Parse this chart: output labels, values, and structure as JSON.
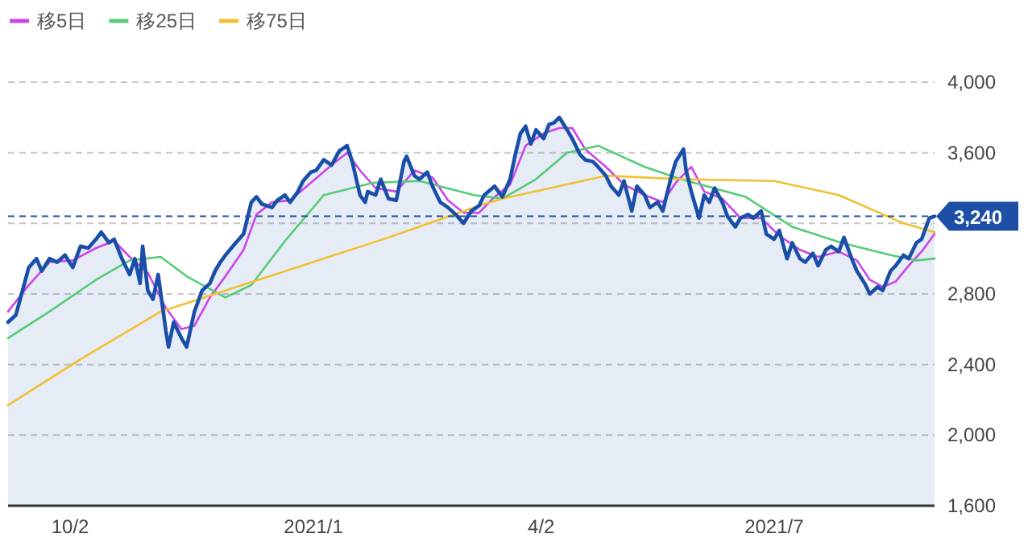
{
  "chart_data": {
    "type": "line",
    "grid": "y",
    "legend": "top left",
    "xlim": [
      "2020-09-08",
      "2021-09-01"
    ],
    "ylim": [
      1600,
      4000
    ],
    "xticks": [
      {
        "value": "2020-10-02",
        "label": "10/2"
      },
      {
        "value": "2021-01-04",
        "label": "2021/1"
      },
      {
        "value": "2021-04-02",
        "label": "4/2"
      },
      {
        "value": "2021-07-01",
        "label": "2021/7"
      }
    ],
    "yticks": [
      {
        "value": 1600,
        "label": "1,600"
      },
      {
        "value": 2000,
        "label": "2,000"
      },
      {
        "value": 2400,
        "label": "2,400"
      },
      {
        "value": 2800,
        "label": "2,800"
      },
      {
        "value": 3200,
        "label": null
      },
      {
        "value": 3600,
        "label": "3,600"
      },
      {
        "value": 4000,
        "label": "4,000"
      }
    ],
    "ref_lines": [
      {
        "axis": "y",
        "value": 3240,
        "label": "3,240",
        "color": "#1d4fa6",
        "line_style": "dashed"
      }
    ],
    "series": [
      {
        "type": "area",
        "color": "#1a4fa8",
        "x": [
          "2020-09-08",
          "2020-09-11",
          "2020-09-16",
          "2020-09-19",
          "2020-09-21",
          "2020-09-24",
          "2020-09-27",
          "2020-09-30",
          "2020-10-03",
          "2020-10-06",
          "2020-10-09",
          "2020-10-12",
          "2020-10-14",
          "2020-10-17",
          "2020-10-19",
          "2020-10-22",
          "2020-10-25",
          "2020-10-27",
          "2020-10-29",
          "2020-10-30",
          "2020-11-01",
          "2020-11-03",
          "2020-11-05",
          "2020-11-08",
          "2020-11-09",
          "2020-11-11",
          "2020-11-14",
          "2020-11-16",
          "2020-11-19",
          "2020-11-22",
          "2020-11-25",
          "2020-11-27",
          "2020-11-29",
          "2020-12-01",
          "2020-12-05",
          "2020-12-08",
          "2020-12-11",
          "2020-12-13",
          "2020-12-15",
          "2020-12-19",
          "2020-12-21",
          "2020-12-24",
          "2020-12-26",
          "2020-12-29",
          "2020-12-31",
          "2021-01-03",
          "2021-01-05",
          "2021-01-08",
          "2021-01-11",
          "2021-01-14",
          "2021-01-17",
          "2021-01-19",
          "2021-01-22",
          "2021-01-24",
          "2021-01-25",
          "2021-01-28",
          "2021-01-30",
          "2021-02-02",
          "2021-02-05",
          "2021-02-08",
          "2021-02-09",
          "2021-02-12",
          "2021-02-14",
          "2021-02-17",
          "2021-02-19",
          "2021-02-22",
          "2021-02-25",
          "2021-02-28",
          "2021-03-03",
          "2021-03-06",
          "2021-03-09",
          "2021-03-11",
          "2021-03-15",
          "2021-03-18",
          "2021-03-21",
          "2021-03-23",
          "2021-03-25",
          "2021-03-27",
          "2021-03-29",
          "2021-03-31",
          "2021-04-03",
          "2021-04-05",
          "2021-04-07",
          "2021-04-09",
          "2021-04-12",
          "2021-04-14",
          "2021-04-17",
          "2021-04-19",
          "2021-04-22",
          "2021-04-24",
          "2021-04-27",
          "2021-04-29",
          "2021-05-02",
          "2021-05-04",
          "2021-05-07",
          "2021-05-09",
          "2021-05-12",
          "2021-05-14",
          "2021-05-17",
          "2021-05-19",
          "2021-05-22",
          "2021-05-24",
          "2021-05-27",
          "2021-05-28",
          "2021-05-30",
          "2021-06-02",
          "2021-06-04",
          "2021-06-06",
          "2021-06-08",
          "2021-06-11",
          "2021-06-13",
          "2021-06-16",
          "2021-06-18",
          "2021-06-21",
          "2021-06-23",
          "2021-06-26",
          "2021-06-28",
          "2021-07-01",
          "2021-07-03",
          "2021-07-06",
          "2021-07-08",
          "2021-07-11",
          "2021-07-13",
          "2021-07-16",
          "2021-07-18",
          "2021-07-21",
          "2021-07-23",
          "2021-07-26",
          "2021-07-28",
          "2021-07-31",
          "2021-08-02",
          "2021-08-05",
          "2021-08-07",
          "2021-08-10",
          "2021-08-12",
          "2021-08-15",
          "2021-08-17",
          "2021-08-20",
          "2021-08-22",
          "2021-08-25",
          "2021-08-27",
          "2021-08-30",
          "2021-09-01"
        ],
        "values": [
          2640,
          2680,
          2950,
          3000,
          2930,
          3000,
          2980,
          3020,
          2950,
          3070,
          3060,
          3110,
          3150,
          3090,
          3110,
          3000,
          2910,
          3000,
          2860,
          3070,
          2820,
          2770,
          2910,
          2590,
          2500,
          2640,
          2550,
          2500,
          2700,
          2820,
          2860,
          2930,
          2980,
          3020,
          3090,
          3140,
          3320,
          3350,
          3310,
          3290,
          3330,
          3360,
          3320,
          3380,
          3440,
          3490,
          3500,
          3560,
          3530,
          3610,
          3640,
          3550,
          3360,
          3320,
          3380,
          3360,
          3450,
          3340,
          3330,
          3550,
          3580,
          3470,
          3450,
          3490,
          3410,
          3320,
          3290,
          3250,
          3200,
          3270,
          3300,
          3360,
          3410,
          3350,
          3450,
          3590,
          3710,
          3750,
          3650,
          3730,
          3680,
          3760,
          3770,
          3800,
          3730,
          3680,
          3590,
          3560,
          3550,
          3520,
          3470,
          3410,
          3360,
          3440,
          3270,
          3410,
          3360,
          3290,
          3320,
          3270,
          3450,
          3550,
          3620,
          3500,
          3380,
          3230,
          3360,
          3320,
          3400,
          3320,
          3240,
          3180,
          3230,
          3250,
          3230,
          3270,
          3140,
          3110,
          3160,
          3000,
          3090,
          3000,
          2980,
          3030,
          2960,
          3050,
          3070,
          3040,
          3120,
          3000,
          2930,
          2860,
          2800,
          2840,
          2820,
          2930,
          2960,
          3020,
          3000,
          3090,
          3110,
          3230,
          3240
        ]
      },
      {
        "name": "移5日",
        "color": "#cc44ee",
        "x": [
          "2020-09-08",
          "2020-09-16",
          "2020-09-24",
          "2020-10-03",
          "2020-10-12",
          "2020-10-19",
          "2020-10-25",
          "2020-11-01",
          "2020-11-08",
          "2020-11-14",
          "2020-11-19",
          "2020-11-25",
          "2020-12-01",
          "2020-12-08",
          "2020-12-13",
          "2020-12-19",
          "2020-12-26",
          "2021-01-03",
          "2021-01-11",
          "2021-01-17",
          "2021-01-22",
          "2021-01-28",
          "2021-02-05",
          "2021-02-12",
          "2021-02-19",
          "2021-02-25",
          "2021-03-03",
          "2021-03-09",
          "2021-03-15",
          "2021-03-21",
          "2021-03-27",
          "2021-04-03",
          "2021-04-09",
          "2021-04-14",
          "2021-04-19",
          "2021-04-27",
          "2021-05-04",
          "2021-05-12",
          "2021-05-19",
          "2021-05-24",
          "2021-05-30",
          "2021-06-04",
          "2021-06-11",
          "2021-06-18",
          "2021-06-26",
          "2021-07-03",
          "2021-07-11",
          "2021-07-18",
          "2021-07-26",
          "2021-08-02",
          "2021-08-07",
          "2021-08-12",
          "2021-08-17",
          "2021-08-22",
          "2021-08-27",
          "2021-09-01"
        ],
        "values": [
          2700,
          2850,
          2980,
          2990,
          3060,
          3100,
          3010,
          2920,
          2720,
          2600,
          2620,
          2780,
          2900,
          3050,
          3250,
          3320,
          3330,
          3430,
          3530,
          3600,
          3500,
          3400,
          3380,
          3500,
          3460,
          3330,
          3260,
          3260,
          3350,
          3420,
          3640,
          3710,
          3740,
          3740,
          3620,
          3520,
          3420,
          3360,
          3320,
          3430,
          3520,
          3380,
          3340,
          3230,
          3230,
          3130,
          3050,
          3010,
          3040,
          2990,
          2880,
          2840,
          2870,
          2960,
          3040,
          3140
        ]
      },
      {
        "name": "移25日",
        "color": "#55cc77",
        "x": [
          "2020-09-08",
          "2020-09-24",
          "2020-10-12",
          "2020-10-25",
          "2020-11-06",
          "2020-11-16",
          "2020-12-01",
          "2020-12-11",
          "2020-12-24",
          "2021-01-08",
          "2021-01-27",
          "2021-02-14",
          "2021-03-07",
          "2021-03-18",
          "2021-03-31",
          "2021-04-12",
          "2021-04-24",
          "2021-05-12",
          "2021-05-26",
          "2021-06-20",
          "2021-07-08",
          "2021-07-27",
          "2021-08-15",
          "2021-08-25",
          "2021-09-01"
        ],
        "values": [
          2550,
          2700,
          2880,
          2990,
          3010,
          2900,
          2780,
          2850,
          3100,
          3360,
          3430,
          3440,
          3360,
          3340,
          3450,
          3600,
          3640,
          3520,
          3450,
          3350,
          3180,
          3090,
          3020,
          2990,
          3000
        ]
      },
      {
        "name": "移75日",
        "color": "#f0c030",
        "x": [
          "2020-09-08",
          "2020-10-06",
          "2020-11-06",
          "2020-12-20",
          "2021-02-02",
          "2021-03-09",
          "2021-03-18",
          "2021-04-27",
          "2021-05-26",
          "2021-07-01",
          "2021-07-26",
          "2021-08-20",
          "2021-09-01"
        ],
        "values": [
          2170,
          2430,
          2700,
          2910,
          3120,
          3300,
          3340,
          3470,
          3450,
          3440,
          3360,
          3200,
          3150
        ]
      }
    ]
  }
}
